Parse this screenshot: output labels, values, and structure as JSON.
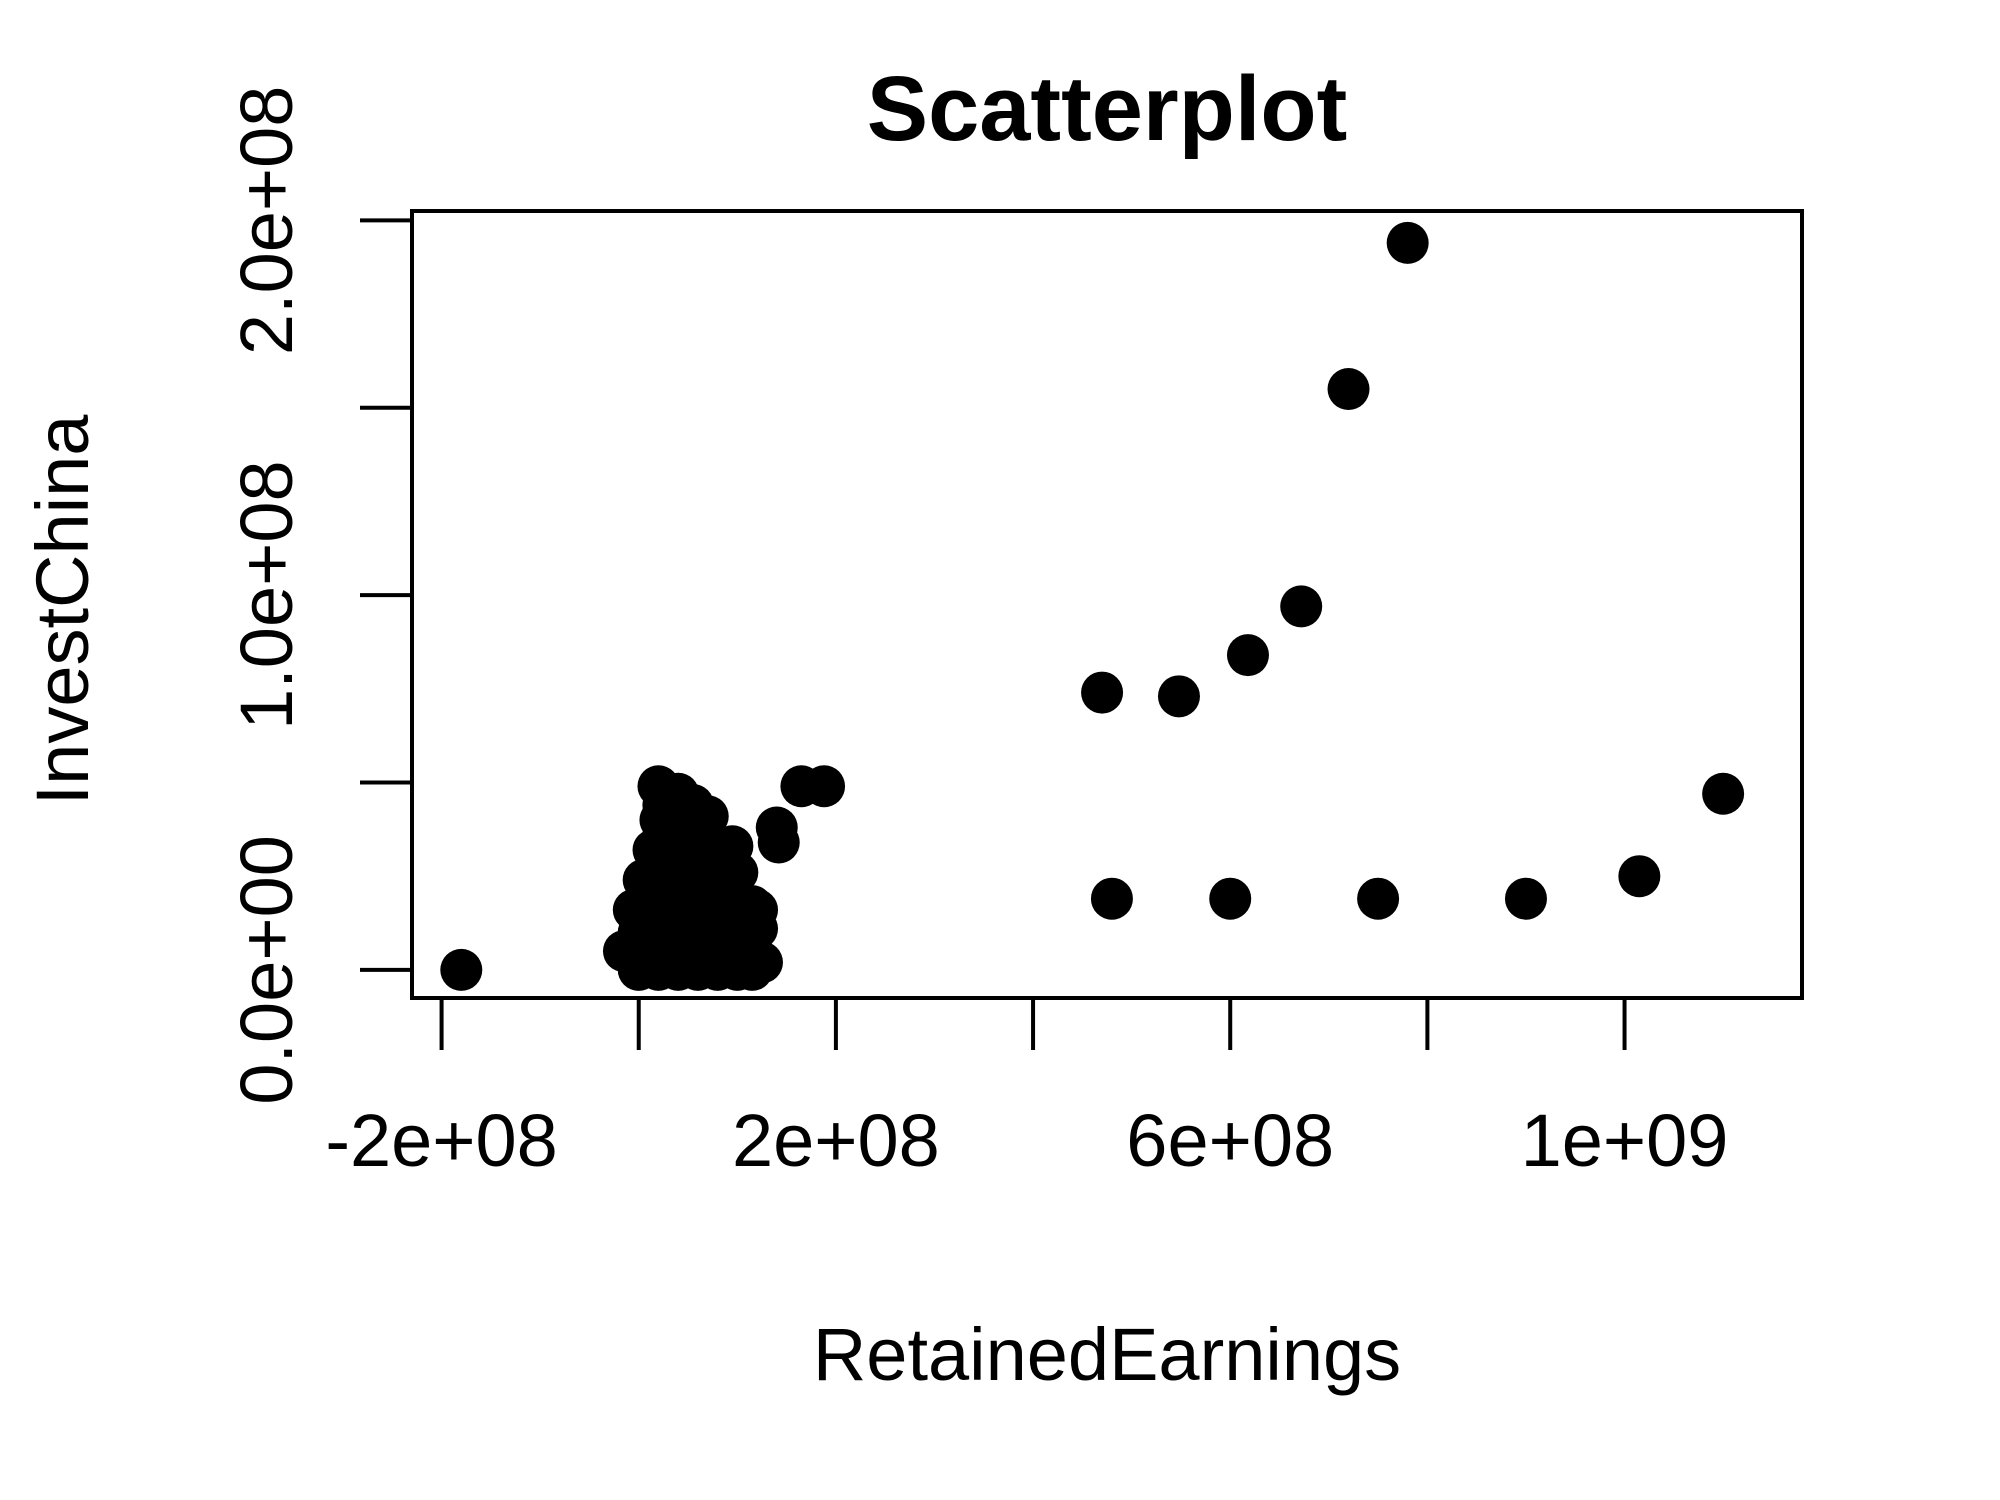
{
  "chart_data": {
    "type": "scatter",
    "title": "Scatterplot",
    "xlabel": "RetainedEarnings",
    "ylabel": "InvestChina",
    "xlim": [
      -230000000,
      1180000000
    ],
    "ylim": [
      -7500000,
      202500000
    ],
    "xticks": [
      {
        "value": -200000000,
        "label": "-2e+08"
      },
      {
        "value": 0,
        "label": ""
      },
      {
        "value": 200000000,
        "label": "2e+08"
      },
      {
        "value": 400000000,
        "label": ""
      },
      {
        "value": 600000000,
        "label": "6e+08"
      },
      {
        "value": 800000000,
        "label": ""
      },
      {
        "value": 1000000000,
        "label": "1e+09"
      }
    ],
    "yticks": [
      {
        "value": 0,
        "label": "0.0e+00"
      },
      {
        "value": 50000000,
        "label": ""
      },
      {
        "value": 100000000,
        "label": "1.0e+08"
      },
      {
        "value": 150000000,
        "label": ""
      },
      {
        "value": 200000000,
        "label": "2.0e+08"
      }
    ],
    "grid": false,
    "series": [
      {
        "x": [
          -180000000,
          480000000,
          600000000,
          750000000,
          900000000,
          1015000000,
          1100000000,
          470000000,
          548000000,
          618000000,
          672000000,
          720000000,
          780000000,
          165000000,
          188000000,
          140000000,
          142000000,
          20000000,
          40000000,
          55000000,
          70000000,
          25000000,
          35000000,
          50000000,
          65000000,
          22000000,
          30000000,
          45000000,
          60000000,
          80000000,
          15000000,
          25000000,
          40000000,
          55000000,
          70000000,
          85000000,
          100000000,
          115000000,
          5000000,
          15000000,
          30000000,
          45000000,
          60000000,
          75000000,
          90000000,
          105000000,
          120000000,
          -5000000,
          10000000,
          20000000,
          35000000,
          50000000,
          65000000,
          80000000,
          95000000,
          110000000,
          0,
          15000000,
          30000000,
          45000000,
          60000000,
          75000000,
          90000000,
          105000000,
          120000000,
          -15000000,
          5000000,
          20000000,
          35000000,
          50000000,
          65000000,
          80000000,
          95000000,
          110000000,
          125000000,
          0,
          20000000,
          40000000,
          60000000,
          80000000,
          100000000,
          115000000,
          10000000,
          30000000,
          50000000,
          70000000,
          90000000,
          105000000,
          95000000,
          120000000,
          25000000,
          100000000,
          10000000,
          40000000,
          70000000
        ],
        "y": [
          0,
          19000000,
          19000000,
          19000000,
          19000000,
          25000000,
          47000000,
          74000000,
          73000000,
          84000000,
          97000000,
          155000000,
          194000000,
          49000000,
          49000000,
          38000000,
          34000000,
          49000000,
          47000000,
          44000000,
          41000000,
          44000000,
          41000000,
          38000000,
          35000000,
          40000000,
          37000000,
          34000000,
          31000000,
          33000000,
          32000000,
          29000000,
          27000000,
          25000000,
          23000000,
          21000000,
          19000000,
          17000000,
          24000000,
          23000000,
          21000000,
          19000000,
          17000000,
          15000000,
          14000000,
          13000000,
          11000000,
          16000000,
          15000000,
          13000000,
          12000000,
          11000000,
          10000000,
          9000000,
          8000000,
          7000000,
          10000000,
          9000000,
          8000000,
          7000000,
          6000000,
          5000000,
          5000000,
          4000000,
          3000000,
          5000000,
          4000000,
          3000000,
          2000000,
          2000000,
          1000000,
          1000000,
          1000000,
          1000000,
          2000000,
          0,
          0,
          0,
          0,
          0,
          0,
          0,
          2000000,
          3000000,
          4000000,
          3000000,
          2000000,
          1000000,
          33000000,
          16000000,
          36000000,
          26000000,
          12000000,
          6000000,
          9000000
        ]
      }
    ]
  }
}
